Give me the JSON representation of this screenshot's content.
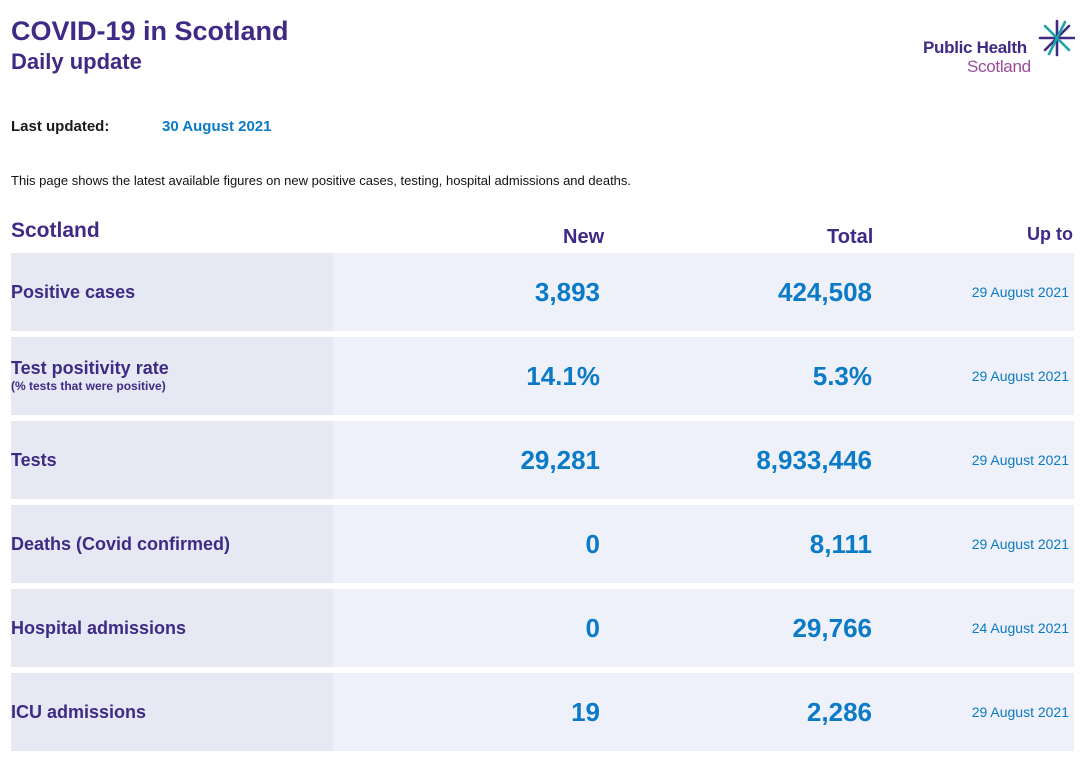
{
  "header": {
    "title": "COVID-19 in Scotland",
    "subtitle": "Daily update"
  },
  "logo": {
    "line1": "Public Health",
    "line2": "Scotland",
    "icon": "star-burst-icon"
  },
  "last_updated": {
    "label": "Last updated:",
    "value": "30 August 2021"
  },
  "intro": "This page shows the latest available figures on new positive cases, testing, hospital admissions and deaths.",
  "table": {
    "columns": {
      "region": "Scotland",
      "new": "New",
      "total": "Total",
      "up_to": "Up to"
    },
    "rows": [
      {
        "metric": "Positive cases",
        "note": "",
        "new": "3,893",
        "total": "424,508",
        "up_to": "29 August 2021"
      },
      {
        "metric": "Test positivity rate",
        "note": "(% tests that were positive)",
        "new": "14.1%",
        "total": "5.3%",
        "up_to": "29 August 2021"
      },
      {
        "metric": "Tests",
        "note": "",
        "new": "29,281",
        "total": "8,933,446",
        "up_to": "29 August 2021"
      },
      {
        "metric": "Deaths (Covid confirmed)",
        "note": "",
        "new": "0",
        "total": "8,111",
        "up_to": "29 August 2021"
      },
      {
        "metric": "Hospital admissions",
        "note": "",
        "new": "0",
        "total": "29,766",
        "up_to": "24 August 2021"
      },
      {
        "metric": "ICU admissions",
        "note": "",
        "new": "19",
        "total": "2,286",
        "up_to": "29 August 2021"
      }
    ]
  },
  "colors": {
    "heading": "#3f2a85",
    "accent": "#0b7ac7",
    "row_bg": "#eef1f9",
    "label_bg": "#e6e9f3"
  }
}
